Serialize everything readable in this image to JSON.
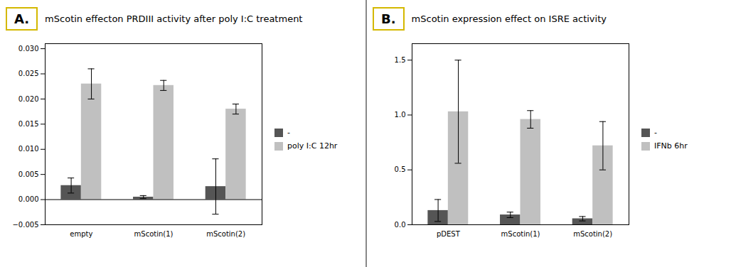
{
  "chart_data": [
    {
      "type": "bar",
      "title": "mScotin effecton PRDIII activity after poly I:C treatment",
      "annotations": [
        "A."
      ],
      "categories": [
        "empty",
        "mScotin(1)",
        "mScotin(2)"
      ],
      "series": [
        {
          "name": "-",
          "color": "#555555",
          "values": [
            0.0028,
            0.0005,
            0.0026
          ],
          "errors": [
            0.0015,
            0.0003,
            0.0055
          ]
        },
        {
          "name": "poly I:C 12hr",
          "color": "#c0c0c0",
          "values": [
            0.023,
            0.0227,
            0.018
          ],
          "errors": [
            0.003,
            0.001,
            0.001
          ]
        }
      ],
      "ylim": [
        -0.005,
        0.031
      ],
      "yticks": [
        {
          "value": -0.005,
          "label": "−0.005"
        },
        {
          "value": 0,
          "label": "0.000"
        },
        0.005,
        {
          "value": 0.01,
          "label": "0.010"
        },
        0.015,
        {
          "value": 0.02,
          "label": "0.020"
        },
        0.025,
        {
          "value": 0.03,
          "label": "0.030"
        }
      ],
      "grid": false,
      "legend": "right"
    },
    {
      "type": "bar",
      "title": "mScotin expression effect on ISRE activity",
      "annotations": [
        "B."
      ],
      "categories": [
        "pDEST",
        "mScotin(1)",
        "mScotin(2)"
      ],
      "series": [
        {
          "name": "-",
          "color": "#555555",
          "values": [
            0.13,
            0.09,
            0.055
          ],
          "errors": [
            0.1,
            0.025,
            0.02
          ]
        },
        {
          "name": "IFNb 6hr",
          "color": "#c0c0c0",
          "values": [
            1.03,
            0.96,
            0.72
          ],
          "errors": [
            0.47,
            0.08,
            0.22
          ]
        }
      ],
      "ylim": [
        0,
        1.65
      ],
      "yticks": [
        {
          "value": 0,
          "label": "0.0"
        },
        0.5,
        {
          "value": 1,
          "label": "1.0"
        },
        1.5
      ],
      "grid": false,
      "legend": "right"
    }
  ]
}
